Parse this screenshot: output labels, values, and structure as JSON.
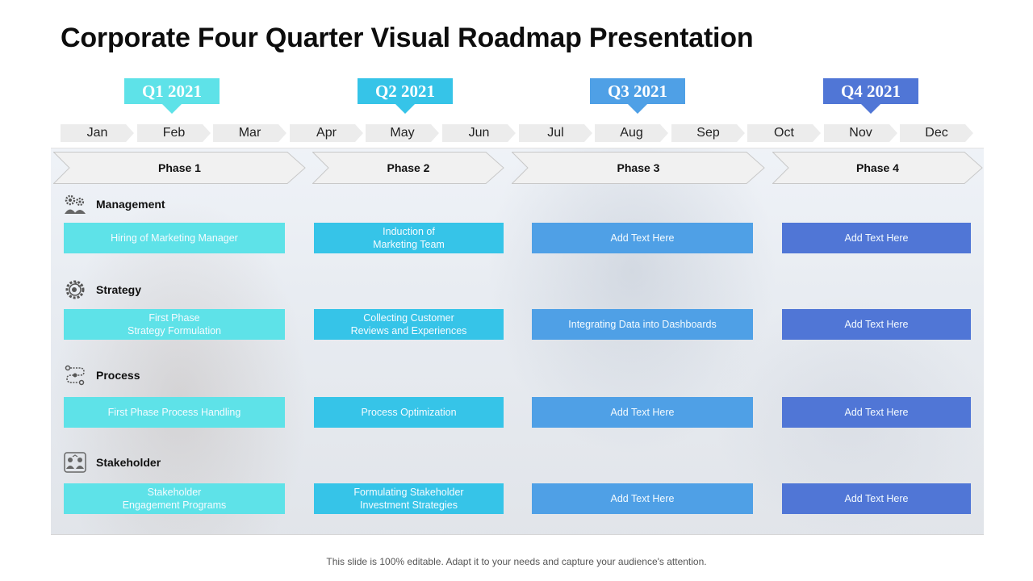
{
  "title": "Corporate Four Quarter Visual Roadmap Presentation",
  "quarters": [
    {
      "label": "Q1 2021",
      "color": "#5ee2e8"
    },
    {
      "label": "Q2 2021",
      "color": "#36c4e8"
    },
    {
      "label": "Q3 2021",
      "color": "#4fa0e6"
    },
    {
      "label": "Q4 2021",
      "color": "#5076d6"
    }
  ],
  "months": [
    "Jan",
    "Feb",
    "Mar",
    "Apr",
    "May",
    "Jun",
    "Jul",
    "Aug",
    "Sep",
    "Oct",
    "Nov",
    "Dec"
  ],
  "phases": [
    "Phase 1",
    "Phase 2",
    "Phase 3",
    "Phase 4"
  ],
  "categories": [
    {
      "label": "Management",
      "icon": "gears-people-icon"
    },
    {
      "label": "Strategy",
      "icon": "gear-strategy-icon"
    },
    {
      "label": "Process",
      "icon": "process-flow-icon"
    },
    {
      "label": "Stakeholder",
      "icon": "stakeholder-group-icon"
    }
  ],
  "tasks": [
    [
      "Hiring of Marketing Manager",
      "Induction of\nMarketing Team",
      "Add Text Here",
      "Add Text Here"
    ],
    [
      "First Phase\nStrategy Formulation",
      "Collecting Customer\nReviews  and Experiences",
      "Integrating Data into Dashboards",
      "Add Text Here"
    ],
    [
      "First Phase Process Handling",
      "Process Optimization",
      "Add Text Here",
      "Add Text Here"
    ],
    [
      "Stakeholder\nEngagement  Programs",
      "Formulating Stakeholder\nInvestment  Strategies",
      "Add Text Here",
      "Add Text Here"
    ]
  ],
  "footer": "This slide is 100% editable. Adapt it to your needs and capture your audience's attention."
}
